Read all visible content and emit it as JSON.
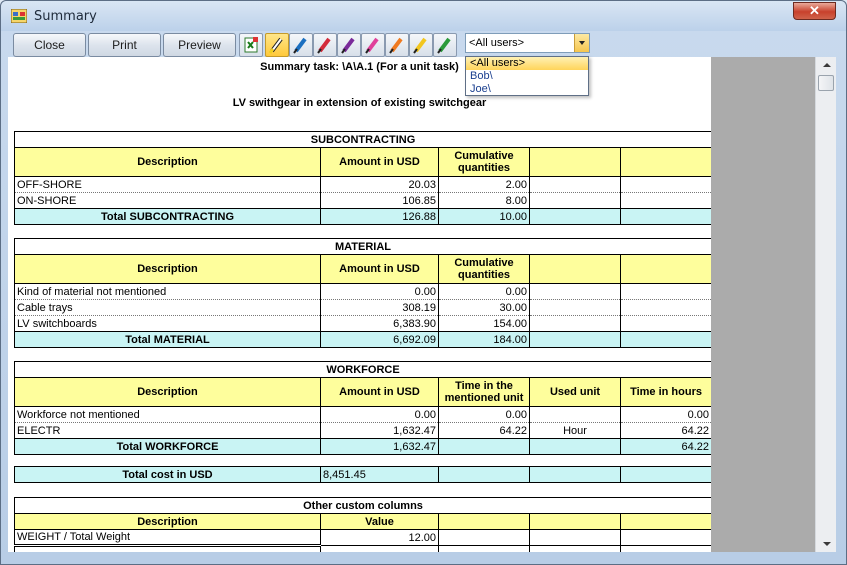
{
  "window": {
    "title": "Summary"
  },
  "toolbar": {
    "close_label": "Close",
    "print_label": "Print",
    "preview_label": "Preview",
    "user_filter": {
      "selected": "<All users>",
      "options": [
        "<All users>",
        "Bob\\",
        "Joe\\"
      ]
    }
  },
  "report": {
    "task_title": "Summary task: \\A\\A.1 (For a unit task)",
    "subtitle": "LV swithgear in extension of existing switchgear",
    "subcontracting": {
      "section": "SUBCONTRACTING",
      "headers": [
        "Description",
        "Amount in USD",
        "Cumulative quantities",
        "",
        ""
      ],
      "rows": [
        {
          "desc": "OFF-SHORE",
          "amount": "20.03",
          "qty": "2.00"
        },
        {
          "desc": "ON-SHORE",
          "amount": "106.85",
          "qty": "8.00"
        }
      ],
      "total": {
        "label": "Total SUBCONTRACTING",
        "amount": "126.88",
        "qty": "10.00"
      }
    },
    "material": {
      "section": "MATERIAL",
      "headers": [
        "Description",
        "Amount in USD",
        "Cumulative quantities",
        "",
        ""
      ],
      "rows": [
        {
          "desc": "Kind of material not mentioned",
          "amount": "0.00",
          "qty": "0.00"
        },
        {
          "desc": "Cable trays",
          "amount": "308.19",
          "qty": "30.00"
        },
        {
          "desc": "LV switchboards",
          "amount": "6,383.90",
          "qty": "154.00"
        }
      ],
      "total": {
        "label": "Total MATERIAL",
        "amount": "6,692.09",
        "qty": "184.00"
      }
    },
    "workforce": {
      "section": "WORKFORCE",
      "headers": [
        "Description",
        "Amount in USD",
        "Time in the mentioned unit",
        "Used unit",
        "Time in hours"
      ],
      "rows": [
        {
          "desc": "Workforce not mentioned",
          "amount": "0.00",
          "time_unit": "0.00",
          "unit": "",
          "hours": "0.00"
        },
        {
          "desc": "ELECTR",
          "amount": "1,632.47",
          "time_unit": "64.22",
          "unit": "Hour",
          "hours": "64.22"
        }
      ],
      "total": {
        "label": "Total WORKFORCE",
        "amount": "1,632.47",
        "hours": "64.22"
      }
    },
    "grand_total": {
      "label": "Total cost in USD",
      "amount": "8,451.45"
    },
    "custom": {
      "section": "Other custom columns",
      "headers": [
        "Description",
        "Value"
      ],
      "rows": [
        {
          "desc": "WEIGHT / Total Weight",
          "value": "12.00"
        }
      ]
    }
  }
}
